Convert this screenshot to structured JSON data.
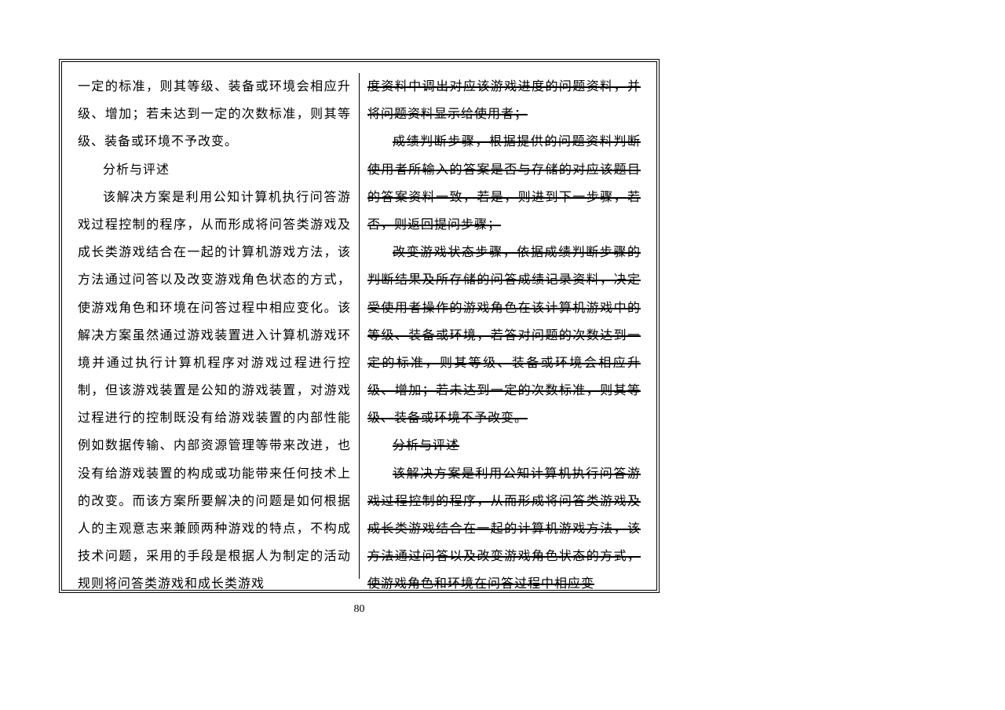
{
  "pageNumber": "80",
  "leftColumn": {
    "line1": "一定的标准，则其等级、装备或环境会相应升级、增加；若未达到一定的次数标准，则其等级、装备或环境不予改变。",
    "heading1": "分析与评述",
    "para2": "该解决方案是利用公知计算机执行问答游戏过程控制的程序，从而形成将问答类游戏及成长类游戏结合在一起的计算机游戏方法，该方法通过问答以及改变游戏角色状态的方式，使游戏角色和环境在问答过程中相应变化。该解决方案虽然通过游戏装置进入计算机游戏环境并通过执行计算机程序对游戏过程进行控制，但该游戏装置是公知的游戏装置，对游戏过程进行的控制既没有给游戏装置的内部性能例如数据传输、内部资源管理等带来改进，也没有给游戏装置的构成或功能带来任何技术上的改变。而该方案所要解决的问题是如何根据人的主观意志来兼顾两种游戏的特点，不构成技术问题，采用的手段是根据人为制定的活动规则将问答类游戏和成长类游戏"
  },
  "rightColumn": {
    "line1": "度资料中调出对应该游戏进度的问题资料，并将问题资料显示给使用者；",
    "para2": "成绩判断步骤，根据提供的问题资料判断使用者所输入的答案是否与存储的对应该题目的答案资料一致，若是，则进到下一步骤，若否，则返回提问步骤；",
    "para3": "改变游戏状态步骤，依据成绩判断步骤的判断结果及所存储的问答成绩记录资料，决定受使用者操作的游戏角色在该计算机游戏中的等级、装备或环境，若答对问题的次数达到一定的标准，则其等级、装备或环境会相应升级、增加；若未达到一定的次数标准，则其等级、装备或环境不予改变。",
    "heading1": "分析与评述",
    "para4": "该解决方案是利用公知计算机执行问答游戏过程控制的程序，从而形成将问答类游戏及成长类游戏结合在一起的计算机游戏方法，该方法通过问答以及改变游戏角色状态的方式，使游戏角色和环境在问答过程中相应变"
  }
}
